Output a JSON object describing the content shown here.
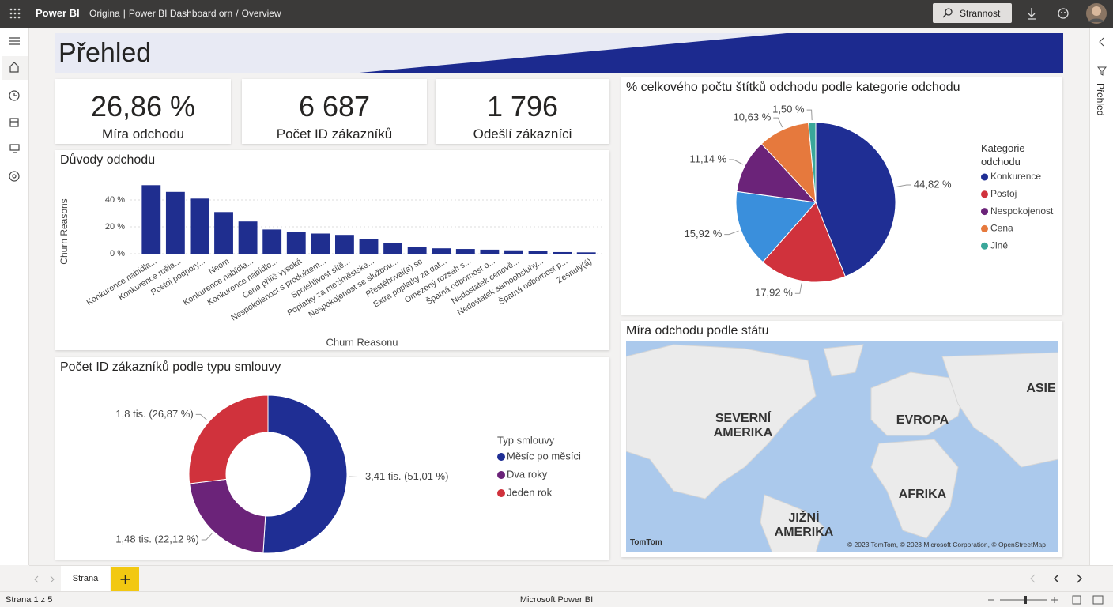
{
  "topbar": {
    "app": "Power BI",
    "breadcrumb": [
      "Origina",
      "|",
      "Power BI Dashboard orn",
      "/",
      "Overview"
    ],
    "button": "Strannost"
  },
  "page_title": "Přehled",
  "kpis": [
    {
      "value": "26,86 %",
      "label": "Míra odchodu"
    },
    {
      "value": "6 687",
      "label": "Počet ID zákazníků"
    },
    {
      "value": "1 796",
      "label": "Odešlí zákazníci"
    }
  ],
  "chart_data": [
    {
      "type": "bar",
      "title": "Důvody odchodu",
      "y_label": "Churn Reasons",
      "x_label": "Churn Reasonu",
      "color": "#1f2e8f",
      "categories": [
        "Konkurence nabídla...",
        "Konkurence měla...",
        "Postoj podpory...",
        "Neom",
        "Konkurence nabídla...",
        "Konkurence nabídlo...",
        "Cena příliš vysoká",
        "Nespokojenost s produktem...",
        "Spolehlivost sítě...",
        "Poplatky za meziměstské...",
        "Nespokojenost se službou...",
        "Přestěhoval(a) se",
        "Extra poplatky za dat...",
        "Omezený rozsah s...",
        "Špatná odbornost o...",
        "Nedostatek cenově...",
        "Nedostatek samoobsluhy...",
        "Špatná odbornost p...",
        "Zesnulý(á)"
      ],
      "values": [
        51,
        46,
        41,
        31,
        24,
        18,
        16,
        15,
        14,
        11,
        8,
        5,
        4,
        3.5,
        3,
        2.5,
        2,
        1.2,
        1
      ],
      "ylim": [
        0,
        55
      ],
      "yticks": [
        {
          "value": 0,
          "label": "0 %"
        },
        {
          "value": 20,
          "label": "20 %"
        },
        {
          "value": 40,
          "label": "40 %"
        }
      ],
      "grid": true
    },
    {
      "type": "pie",
      "title": "% celkového počtu štítků odchodu podle kategorie odchodu",
      "legend_title": "Kategorie odchodu",
      "categories": [
        "Konkurence",
        "Postoj",
        null,
        "Nespokojenost",
        "Cena",
        "Jiné"
      ],
      "values": [
        44.82,
        17.92,
        15.92,
        11.14,
        10.63,
        1.5
      ],
      "value_labels": [
        "44,82 %",
        "17,92 %",
        "15,92 %",
        "11,14 %",
        "10,63 %",
        "1,50 %"
      ],
      "colors": [
        "#1f2e94",
        "#d0323c",
        "#3a8fdc",
        "#6b2379",
        "#e6793d",
        "#3aa79a"
      ]
    },
    {
      "type": "donut",
      "title": "Počet ID zákazníků podle typu smlouvy",
      "legend_title": "Typ smlouvy",
      "categories": [
        "Měsíc po měsíci",
        "Dva roky",
        "Jeden rok"
      ],
      "values": [
        3.41,
        1.48,
        1.8
      ],
      "value_labels": [
        "3,41 tis. (51,01 %)",
        "1,48 tis. (22,12 %)",
        "1,8 tis. (26,87 %)"
      ],
      "colors": [
        "#1f2e94",
        "#6b2379",
        "#d0323c"
      ]
    }
  ],
  "map": {
    "title": "Míra odchodu podle státu",
    "labels": [
      "SEVERNÍ AMERIKA",
      "EVROPA",
      "ASIE",
      "AFRIKA",
      "JIŽNÍ AMERIKA"
    ],
    "brand": "TomTom",
    "copyright": "© 2023 TomTom, © 2023 Microsoft Corporation, © OpenStreetMap"
  },
  "tabs": {
    "page_tab": "Strana"
  },
  "status": {
    "page": "Strana 1 z 5",
    "app": "Microsoft Power BI"
  },
  "side_pane": "Přehled"
}
